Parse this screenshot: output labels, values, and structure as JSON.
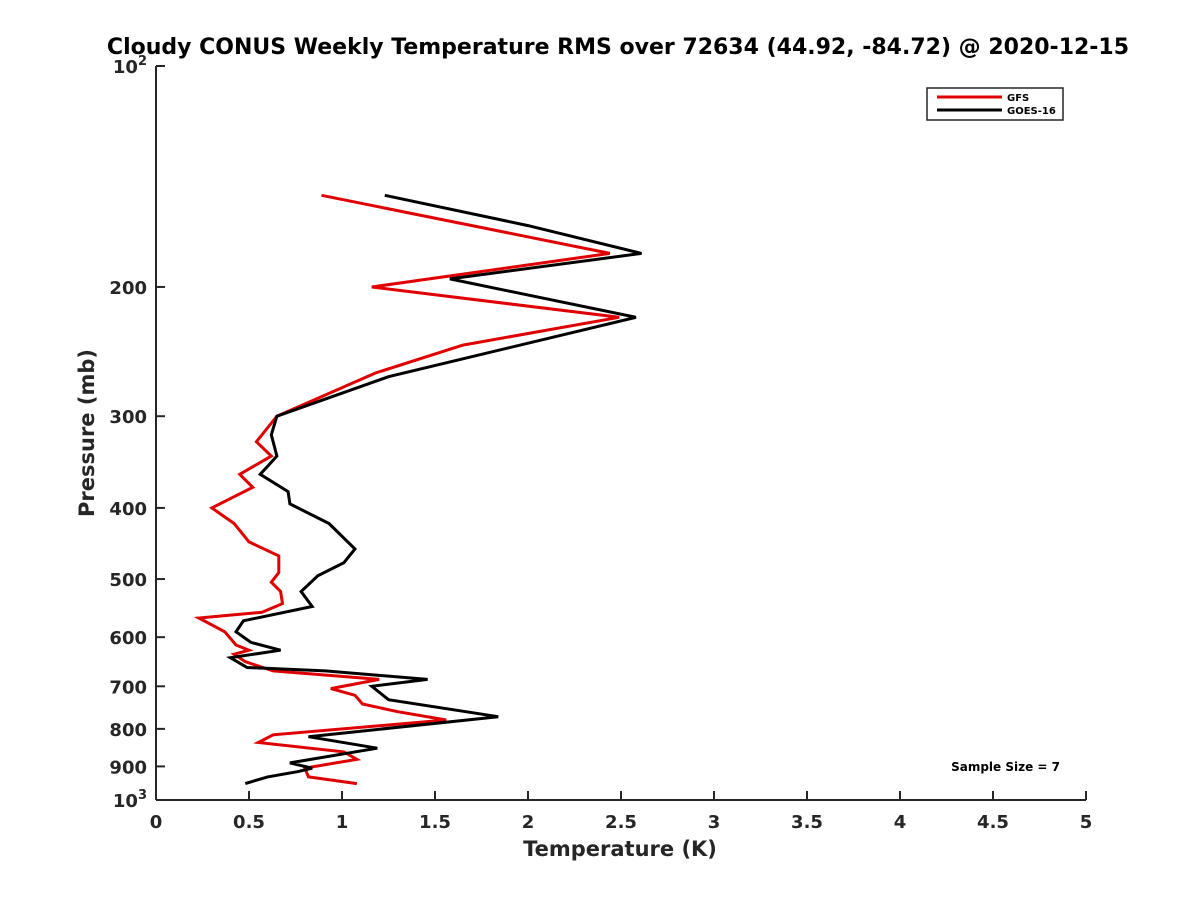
{
  "chart_data": {
    "type": "line",
    "title": "Cloudy CONUS Weekly Temperature RMS over 72634 (44.92, -84.72) @ 2020-12-15",
    "xlabel": "Temperature (K)",
    "ylabel": "Pressure (mb)",
    "xlim": [
      0,
      5
    ],
    "ylim": [
      100,
      1000
    ],
    "y_scale": "log",
    "y_reversed": true,
    "x_ticks": [
      "0",
      "0.5",
      "1",
      "1.5",
      "2",
      "2.5",
      "3",
      "3.5",
      "4",
      "4.5",
      "5"
    ],
    "y_ticks": [
      {
        "value": 100,
        "base": "10",
        "exp": "2"
      },
      {
        "value": 200,
        "label": "200"
      },
      {
        "value": 300,
        "label": "300"
      },
      {
        "value": 400,
        "label": "400"
      },
      {
        "value": 500,
        "label": "500"
      },
      {
        "value": 600,
        "label": "600"
      },
      {
        "value": 700,
        "label": "700"
      },
      {
        "value": 800,
        "label": "800"
      },
      {
        "value": 900,
        "label": "900"
      },
      {
        "value": 1000,
        "base": "10",
        "exp": "3"
      }
    ],
    "grid": false,
    "legend_position": "top-right",
    "annotation": "Sample Size = 7",
    "series": [
      {
        "name": "GFS",
        "color": "#e00000",
        "points": [
          [
            0.89,
            150
          ],
          [
            2.44,
            180
          ],
          [
            1.16,
            200
          ],
          [
            2.49,
            220
          ],
          [
            1.65,
            240
          ],
          [
            1.18,
            262
          ],
          [
            0.65,
            300
          ],
          [
            0.54,
            325
          ],
          [
            0.62,
            340
          ],
          [
            0.45,
            360
          ],
          [
            0.52,
            375
          ],
          [
            0.3,
            400
          ],
          [
            0.42,
            420
          ],
          [
            0.5,
            445
          ],
          [
            0.66,
            465
          ],
          [
            0.66,
            490
          ],
          [
            0.62,
            505
          ],
          [
            0.67,
            520
          ],
          [
            0.68,
            540
          ],
          [
            0.57,
            555
          ],
          [
            0.23,
            565
          ],
          [
            0.37,
            590
          ],
          [
            0.43,
            615
          ],
          [
            0.5,
            625
          ],
          [
            0.42,
            633
          ],
          [
            0.48,
            648
          ],
          [
            0.63,
            667
          ],
          [
            1.2,
            685
          ],
          [
            0.94,
            705
          ],
          [
            1.07,
            720
          ],
          [
            1.11,
            740
          ],
          [
            1.3,
            758
          ],
          [
            1.56,
            778
          ],
          [
            0.63,
            815
          ],
          [
            0.55,
            835
          ],
          [
            1.01,
            860
          ],
          [
            1.08,
            880
          ],
          [
            0.8,
            905
          ],
          [
            0.82,
            930
          ],
          [
            1.08,
            950
          ]
        ]
      },
      {
        "name": "GOES-16",
        "color": "#000000",
        "points": [
          [
            1.23,
            150
          ],
          [
            2.0,
            165
          ],
          [
            2.61,
            180
          ],
          [
            1.58,
            195
          ],
          [
            2.58,
            220
          ],
          [
            1.25,
            265
          ],
          [
            0.65,
            300
          ],
          [
            0.62,
            318
          ],
          [
            0.65,
            340
          ],
          [
            0.56,
            360
          ],
          [
            0.71,
            380
          ],
          [
            0.72,
            395
          ],
          [
            0.93,
            420
          ],
          [
            1.07,
            455
          ],
          [
            1.01,
            475
          ],
          [
            0.87,
            495
          ],
          [
            0.78,
            520
          ],
          [
            0.84,
            545
          ],
          [
            0.47,
            570
          ],
          [
            0.43,
            590
          ],
          [
            0.51,
            610
          ],
          [
            0.67,
            625
          ],
          [
            0.4,
            640
          ],
          [
            0.49,
            660
          ],
          [
            0.91,
            667
          ],
          [
            1.46,
            685
          ],
          [
            1.16,
            700
          ],
          [
            1.25,
            730
          ],
          [
            1.84,
            770
          ],
          [
            0.82,
            820
          ],
          [
            1.19,
            850
          ],
          [
            0.72,
            890
          ],
          [
            0.84,
            905
          ],
          [
            0.76,
            915
          ],
          [
            0.6,
            930
          ],
          [
            0.48,
            950
          ]
        ]
      }
    ]
  }
}
